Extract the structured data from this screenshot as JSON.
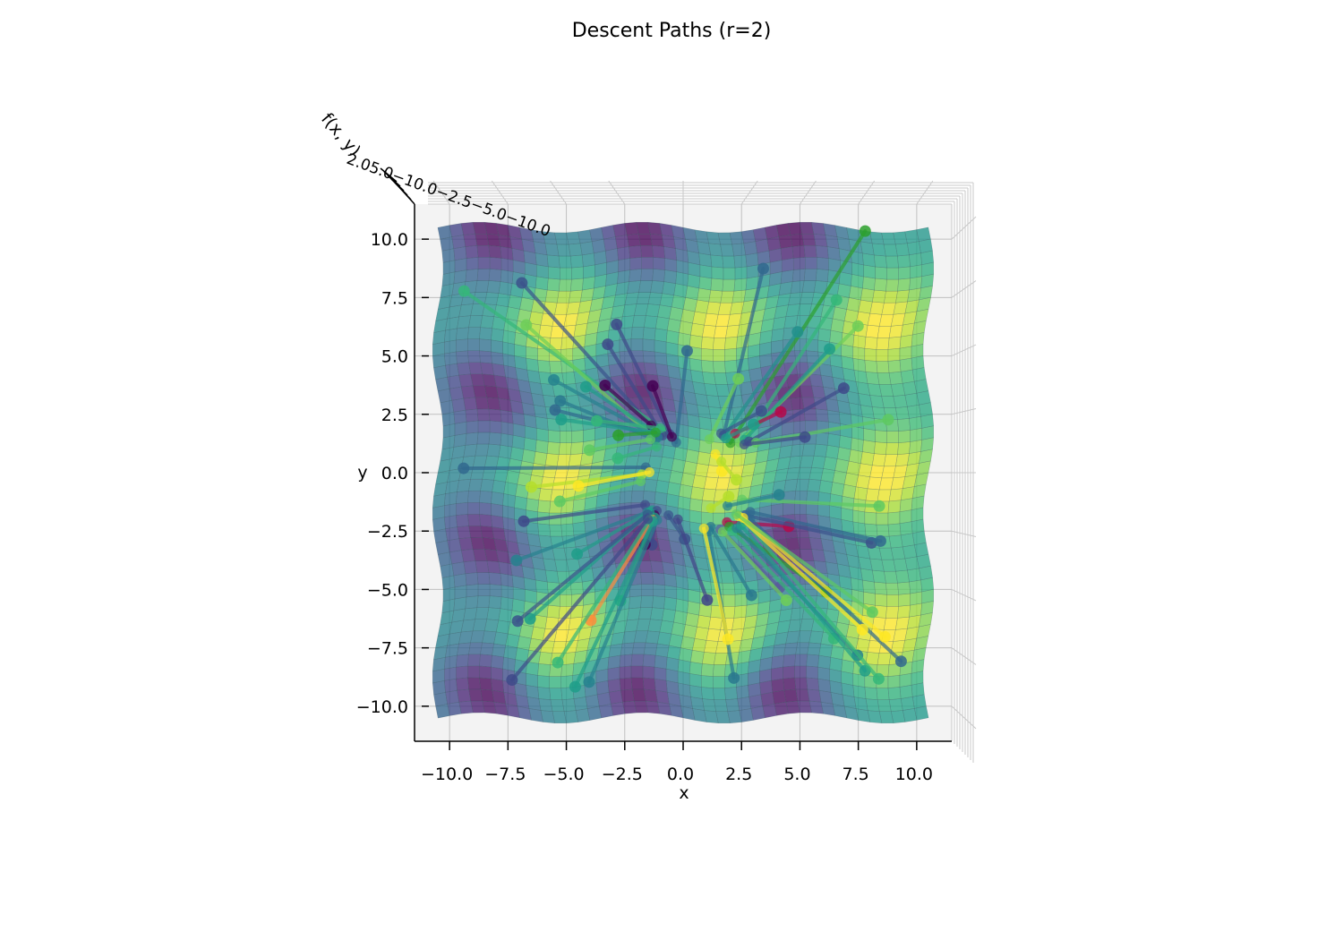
{
  "chart_data": {
    "type": "surface3d",
    "title": "Descent Paths (r=2)",
    "xlabel": "x",
    "ylabel": "y",
    "zlabel": "f(x, y)",
    "view": "top-down",
    "xlim": [
      -11.5,
      11.5
    ],
    "ylim": [
      -11.5,
      11.5
    ],
    "xticks": [
      -10.0,
      -7.5,
      -5.0,
      -2.5,
      0.0,
      2.5,
      5.0,
      7.5,
      10.0
    ],
    "yticks": [
      -10.0,
      -7.5,
      -5.0,
      -2.5,
      0.0,
      2.5,
      5.0,
      7.5,
      10.0
    ],
    "xtick_labels": [
      "−10.0",
      "−7.5",
      "−5.0",
      "−2.5",
      "0.0",
      "2.5",
      "5.0",
      "7.5",
      "10.0"
    ],
    "ytick_labels": [
      "10.0",
      "7.5",
      "5.0",
      "2.5",
      "0.0",
      "−2.5",
      "−5.0",
      "−7.5",
      "−10.0"
    ],
    "zaxis_overlap_text": "2.05.0−10.0−2.5−5.0−10.0",
    "surface": {
      "colormap": "viridis",
      "domain": [
        -10.5,
        10.5
      ],
      "maxima": [
        [
          -5.2,
          6.5
        ],
        [
          1.7,
          6.5
        ],
        [
          8.6,
          6.5
        ],
        [
          -5.2,
          0.0
        ],
        [
          1.7,
          0.0
        ],
        [
          8.6,
          0.0
        ],
        [
          -5.2,
          -6.7
        ],
        [
          1.7,
          -6.7
        ],
        [
          8.6,
          -6.7
        ]
      ],
      "minima": [
        [
          -8.2,
          10.0
        ],
        [
          -1.8,
          10.0
        ],
        [
          4.5,
          10.0
        ],
        [
          -8.2,
          3.2
        ],
        [
          -1.8,
          3.2
        ],
        [
          4.5,
          3.2
        ],
        [
          -8.2,
          -3.2
        ],
        [
          -1.8,
          -3.2
        ],
        [
          4.5,
          -3.2
        ],
        [
          -8.2,
          -9.5
        ],
        [
          -1.8,
          -9.5
        ],
        [
          4.5,
          -9.5
        ]
      ]
    },
    "paths": [
      {
        "start": [
          7.8,
          10.5
        ],
        "end": [
          1.8,
          1.5
        ],
        "color": "#2ca02c"
      },
      {
        "start": [
          3.2,
          8.8
        ],
        "end": [
          1.5,
          1.8
        ],
        "color": "#31688e"
      },
      {
        "start": [
          -7.1,
          8.1
        ],
        "end": [
          -1.2,
          1.4
        ],
        "color": "#3b528b"
      },
      {
        "start": [
          -9.5,
          7.6
        ],
        "end": [
          -1.0,
          1.6
        ],
        "color": "#35b779"
      },
      {
        "start": [
          -6.6,
          6.4
        ],
        "end": [
          -1.5,
          1.3
        ],
        "color": "#6ece58"
      },
      {
        "start": [
          6.5,
          7.3
        ],
        "end": [
          2.5,
          1.7
        ],
        "color": "#35b779"
      },
      {
        "start": [
          7.6,
          6.4
        ],
        "end": [
          2.2,
          1.5
        ],
        "color": "#6ece58"
      },
      {
        "start": [
          5.1,
          5.8
        ],
        "end": [
          1.6,
          1.9
        ],
        "color": "#21918c"
      },
      {
        "start": [
          -2.7,
          6.2
        ],
        "end": [
          -0.8,
          1.5
        ],
        "color": "#3e4a89"
      },
      {
        "start": [
          -3.0,
          5.4
        ],
        "end": [
          -1.1,
          1.4
        ],
        "color": "#3e4a89"
      },
      {
        "start": [
          0.4,
          5.3
        ],
        "end": [
          -0.5,
          1.2
        ],
        "color": "#31688e"
      },
      {
        "start": [
          6.5,
          5.2
        ],
        "end": [
          2.4,
          1.6
        ],
        "color": "#1f9e89"
      },
      {
        "start": [
          -5.4,
          4.2
        ],
        "end": [
          -1.3,
          1.3
        ],
        "color": "#26828e"
      },
      {
        "start": [
          2.5,
          4.2
        ],
        "end": [
          0.9,
          1.6
        ],
        "color": "#6ece58"
      },
      {
        "start": [
          -4.1,
          3.8
        ],
        "end": [
          -1.4,
          1.5
        ],
        "color": "#1f9e89"
      },
      {
        "start": [
          -3.3,
          3.7
        ],
        "end": [
          -1.6,
          1.8
        ],
        "color": "#440154"
      },
      {
        "start": [
          -1.3,
          3.5
        ],
        "end": [
          -0.7,
          1.4
        ],
        "color": "#440154"
      },
      {
        "start": [
          6.9,
          3.6
        ],
        "end": [
          2.6,
          1.5
        ],
        "color": "#3e4a89"
      },
      {
        "start": [
          -5.3,
          3.3
        ],
        "end": [
          -1.4,
          1.2
        ],
        "color": "#2a788e"
      },
      {
        "start": [
          -5.6,
          2.9
        ],
        "end": [
          -1.5,
          1.4
        ],
        "color": "#31688e"
      },
      {
        "start": [
          3.2,
          2.7
        ],
        "end": [
          1.4,
          1.9
        ],
        "color": "#3b528b"
      },
      {
        "start": [
          4.0,
          2.5
        ],
        "end": [
          2.0,
          1.9
        ],
        "color": "#b5094a"
      },
      {
        "start": [
          8.6,
          2.5
        ],
        "end": [
          2.9,
          1.4
        ],
        "color": "#5ec962"
      },
      {
        "start": [
          -5.4,
          2.5
        ],
        "end": [
          -1.5,
          1.5
        ],
        "color": "#1f9e89"
      },
      {
        "start": [
          -3.9,
          2.3
        ],
        "end": [
          -1.2,
          1.7
        ],
        "color": "#35b779"
      },
      {
        "start": [
          2.8,
          2.2
        ],
        "end": [
          1.6,
          1.7
        ],
        "color": "#1f9e89"
      },
      {
        "start": [
          5.0,
          1.3
        ],
        "end": [
          2.4,
          1.4
        ],
        "color": "#3e4a89"
      },
      {
        "start": [
          -4.2,
          1.1
        ],
        "end": [
          -1.6,
          1.2
        ],
        "color": "#5ec962"
      },
      {
        "start": [
          -3.0,
          1.5
        ],
        "end": [
          -1.4,
          1.5
        ],
        "color": "#2ca02c"
      },
      {
        "start": [
          -2.9,
          0.5
        ],
        "end": [
          -1.3,
          0.9
        ],
        "color": "#35b779"
      },
      {
        "start": [
          1.6,
          0.3
        ],
        "end": [
          1.2,
          1.0
        ],
        "color": "#fde725"
      },
      {
        "start": [
          2.3,
          -0.1
        ],
        "end": [
          1.5,
          0.7
        ],
        "color": "#b5de2b"
      },
      {
        "start": [
          -9.4,
          0.0
        ],
        "end": [
          -1.6,
          0.0
        ],
        "color": "#31688e"
      },
      {
        "start": [
          -6.4,
          -0.5
        ],
        "end": [
          -1.7,
          -0.3
        ],
        "color": "#b5de2b"
      },
      {
        "start": [
          -4.4,
          -0.4
        ],
        "end": [
          -1.4,
          -0.2
        ],
        "color": "#fde725"
      },
      {
        "start": [
          -5.1,
          -1.0
        ],
        "end": [
          -1.7,
          -0.6
        ],
        "color": "#5ec962"
      },
      {
        "start": [
          8.6,
          -1.2
        ],
        "end": [
          2.7,
          -1.0
        ],
        "color": "#5ec962"
      },
      {
        "start": [
          4.3,
          -1.1
        ],
        "end": [
          2.1,
          -1.2
        ],
        "color": "#26828e"
      },
      {
        "start": [
          2.1,
          -0.8
        ],
        "end": [
          1.4,
          -1.3
        ],
        "color": "#b5de2b"
      },
      {
        "start": [
          -6.6,
          -2.0
        ],
        "end": [
          -1.4,
          -1.6
        ],
        "color": "#3e4a89"
      },
      {
        "start": [
          -7.2,
          -3.8
        ],
        "end": [
          -1.3,
          -1.9
        ],
        "color": "#26828e"
      },
      {
        "start": [
          -4.5,
          -3.3
        ],
        "end": [
          -1.1,
          -1.8
        ],
        "color": "#1f9e89"
      },
      {
        "start": [
          4.7,
          -2.5
        ],
        "end": [
          2.1,
          -1.9
        ],
        "color": "#b5094a"
      },
      {
        "start": [
          8.2,
          -2.8
        ],
        "end": [
          2.9,
          -1.7
        ],
        "color": "#3b528b"
      },
      {
        "start": [
          8.6,
          -2.7
        ],
        "end": [
          3.1,
          -1.6
        ],
        "color": "#31688e"
      },
      {
        "start": [
          -1.3,
          -3.3
        ],
        "end": [
          -0.9,
          -1.8
        ],
        "color": "#3e4a89"
      },
      {
        "start": [
          0.2,
          -2.8
        ],
        "end": [
          -0.4,
          -1.9
        ],
        "color": "#3b528b"
      },
      {
        "start": [
          -1.6,
          -3.3
        ],
        "end": [
          -1.0,
          -2.0
        ],
        "color": "#440154"
      },
      {
        "start": [
          0.8,
          -5.3
        ],
        "end": [
          0.0,
          -2.0
        ],
        "color": "#414487"
      },
      {
        "start": [
          2.7,
          -5.1
        ],
        "end": [
          1.4,
          -2.1
        ],
        "color": "#2a788e"
      },
      {
        "start": [
          3.9,
          -5.0
        ],
        "end": [
          1.8,
          -2.2
        ],
        "color": "#5b5b9b"
      },
      {
        "start": [
          -2.9,
          -5.6
        ],
        "end": [
          -1.0,
          -2.1
        ],
        "color": "#22a884"
      },
      {
        "start": [
          -6.7,
          -6.2
        ],
        "end": [
          -1.2,
          -1.9
        ],
        "color": "#1f9e89"
      },
      {
        "start": [
          -7.2,
          -6.4
        ],
        "end": [
          -1.3,
          -2.0
        ],
        "color": "#3b528b"
      },
      {
        "start": [
          -4.1,
          -6.2
        ],
        "end": [
          -1.1,
          -2.2
        ],
        "color": "#fd8d3c"
      },
      {
        "start": [
          -5.2,
          -7.9
        ],
        "end": [
          -1.2,
          -2.2
        ],
        "color": "#35b779"
      },
      {
        "start": [
          -3.8,
          -8.9
        ],
        "end": [
          -0.9,
          -2.2
        ],
        "color": "#26828e"
      },
      {
        "start": [
          -4.4,
          -9.0
        ],
        "end": [
          -1.1,
          -2.3
        ],
        "color": "#1f9e89"
      },
      {
        "start": [
          -7.1,
          -8.9
        ],
        "end": [
          -1.3,
          -2.2
        ],
        "color": "#3e4a89"
      },
      {
        "start": [
          2.4,
          -8.6
        ],
        "end": [
          1.3,
          -2.3
        ],
        "color": "#2a788e"
      },
      {
        "start": [
          1.9,
          -6.9
        ],
        "end": [
          1.1,
          -2.2
        ],
        "color": "#fde725"
      },
      {
        "start": [
          4.2,
          -5.6
        ],
        "end": [
          1.9,
          -2.3
        ],
        "color": "#6ece58"
      },
      {
        "start": [
          5.9,
          -5.3
        ],
        "end": [
          2.2,
          -2.1
        ],
        "color": "#2ca02c"
      },
      {
        "start": [
          6.5,
          -7.2
        ],
        "end": [
          2.3,
          -2.3
        ],
        "color": "#35b779"
      },
      {
        "start": [
          7.6,
          -7.7
        ],
        "end": [
          2.5,
          -2.2
        ],
        "color": "#26828e"
      },
      {
        "start": [
          8.0,
          -8.3
        ],
        "end": [
          2.7,
          -2.1
        ],
        "color": "#1f9e89"
      },
      {
        "start": [
          8.6,
          -8.6
        ],
        "end": [
          2.9,
          -2.0
        ],
        "color": "#35b779"
      },
      {
        "start": [
          9.5,
          -7.9
        ],
        "end": [
          3.1,
          -1.9
        ],
        "color": "#31688e"
      },
      {
        "start": [
          8.6,
          -6.8
        ],
        "end": [
          2.8,
          -1.8
        ],
        "color": "#fde725"
      },
      {
        "start": [
          7.6,
          -6.6
        ],
        "end": [
          2.6,
          -1.7
        ],
        "color": "#fde725"
      },
      {
        "start": [
          7.9,
          -5.8
        ],
        "end": [
          2.5,
          -1.6
        ],
        "color": "#5ec962"
      }
    ]
  }
}
